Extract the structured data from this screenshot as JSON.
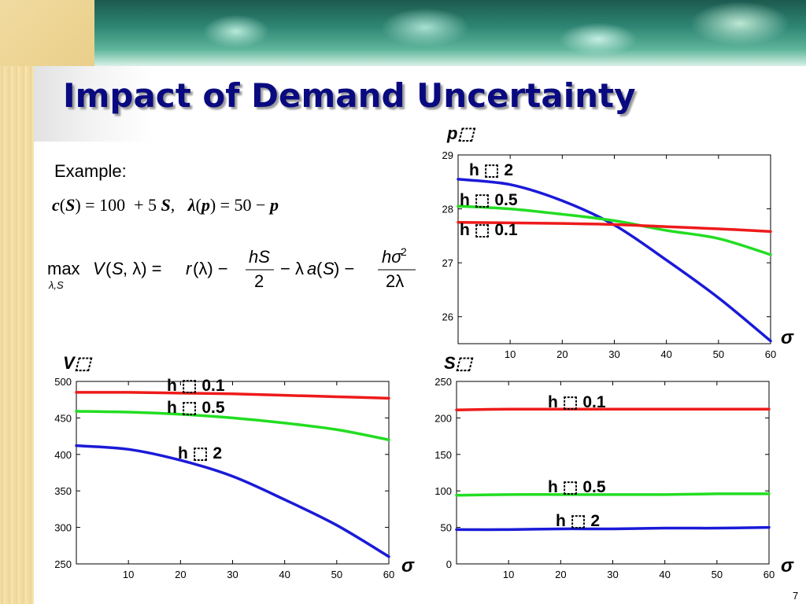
{
  "slide": {
    "title": "Impact of Demand Uncertainty",
    "example_label": "Example:",
    "page_number": "7",
    "formula_cost_demand": "c(S) = 100 + 5 S,   λ(p) = 50 − p",
    "formula_objective": "max_{λ,S} V(S,λ) = r(λ) − hS/2 − λa(S) − hσ²/(2λ)"
  },
  "chart_data": [
    {
      "type": "line",
      "title": "",
      "ylabel": "p⬚",
      "xlabel": "σ",
      "xlim": [
        0,
        60
      ],
      "ylim": [
        25.5,
        29
      ],
      "xticks": [
        10,
        20,
        30,
        40,
        50,
        60
      ],
      "yticks": [
        26,
        27,
        28,
        29
      ],
      "series": [
        {
          "name": "h ⬚ 2",
          "color": "#1a1ad8",
          "x": [
            0,
            10,
            20,
            30,
            40,
            50,
            60
          ],
          "y": [
            28.55,
            28.45,
            28.15,
            27.7,
            27.05,
            26.35,
            25.55
          ]
        },
        {
          "name": "h ⬚ 0.5",
          "color": "#22dd22",
          "x": [
            0,
            10,
            20,
            30,
            40,
            50,
            60
          ],
          "y": [
            28.05,
            28.0,
            27.9,
            27.78,
            27.6,
            27.45,
            27.15
          ]
        },
        {
          "name": "h ⬚ 0.1",
          "color": "#ee1a1a",
          "x": [
            0,
            10,
            20,
            30,
            40,
            50,
            60
          ],
          "y": [
            27.75,
            27.74,
            27.73,
            27.71,
            27.67,
            27.63,
            27.58
          ]
        }
      ],
      "labels": [
        {
          "series": "h ⬚ 2",
          "text": "h ⬚ 2"
        },
        {
          "series": "h ⬚ 0.5",
          "text": "h ⬚ 0.5"
        },
        {
          "series": "h ⬚ 0.1",
          "text": "h ⬚ 0.1"
        }
      ]
    },
    {
      "type": "line",
      "title": "",
      "ylabel": "V⬚",
      "xlabel": "σ",
      "xlim": [
        0,
        60
      ],
      "ylim": [
        250,
        500
      ],
      "xticks": [
        10,
        20,
        30,
        40,
        50,
        60
      ],
      "yticks": [
        250,
        300,
        350,
        400,
        450,
        500
      ],
      "series": [
        {
          "name": "h ⬚ 0.1",
          "color": "#ee1a1a",
          "x": [
            0,
            10,
            20,
            30,
            40,
            50,
            60
          ],
          "y": [
            485,
            485,
            484,
            483,
            481,
            479,
            477
          ]
        },
        {
          "name": "h ⬚ 0.5",
          "color": "#22dd22",
          "x": [
            0,
            10,
            20,
            30,
            40,
            50,
            60
          ],
          "y": [
            459,
            458,
            455,
            450,
            443,
            434,
            420
          ]
        },
        {
          "name": "h ⬚ 2",
          "color": "#1a1ad8",
          "x": [
            0,
            10,
            20,
            30,
            40,
            50,
            60
          ],
          "y": [
            412,
            407,
            392,
            370,
            338,
            303,
            260
          ]
        }
      ],
      "labels": [
        {
          "series": "h ⬚ 0.1",
          "text": "h ⬚ 0.1"
        },
        {
          "series": "h ⬚ 0.5",
          "text": "h ⬚ 0.5"
        },
        {
          "series": "h ⬚ 2",
          "text": "h ⬚ 2"
        }
      ]
    },
    {
      "type": "line",
      "title": "",
      "ylabel": "S⬚",
      "xlabel": "σ",
      "xlim": [
        0,
        60
      ],
      "ylim": [
        0,
        250
      ],
      "xticks": [
        10,
        20,
        30,
        40,
        50,
        60
      ],
      "yticks": [
        0,
        50,
        100,
        150,
        200,
        250
      ],
      "series": [
        {
          "name": "h ⬚ 0.1",
          "color": "#ee1a1a",
          "x": [
            0,
            10,
            20,
            30,
            40,
            50,
            60
          ],
          "y": [
            211,
            212,
            212,
            212,
            212,
            212,
            212
          ]
        },
        {
          "name": "h ⬚ 0.5",
          "color": "#22dd22",
          "x": [
            0,
            10,
            20,
            30,
            40,
            50,
            60
          ],
          "y": [
            94,
            95,
            95,
            95,
            95,
            96,
            96
          ]
        },
        {
          "name": "h ⬚ 2",
          "color": "#1a1ad8",
          "x": [
            0,
            10,
            20,
            30,
            40,
            50,
            60
          ],
          "y": [
            47,
            47,
            48,
            48,
            49,
            49,
            50
          ]
        }
      ],
      "labels": [
        {
          "series": "h ⬚ 0.1",
          "text": "h ⬚ 0.1"
        },
        {
          "series": "h ⬚ 0.5",
          "text": "h ⬚ 0.5"
        },
        {
          "series": "h ⬚ 2",
          "text": "h ⬚ 2"
        }
      ]
    }
  ]
}
